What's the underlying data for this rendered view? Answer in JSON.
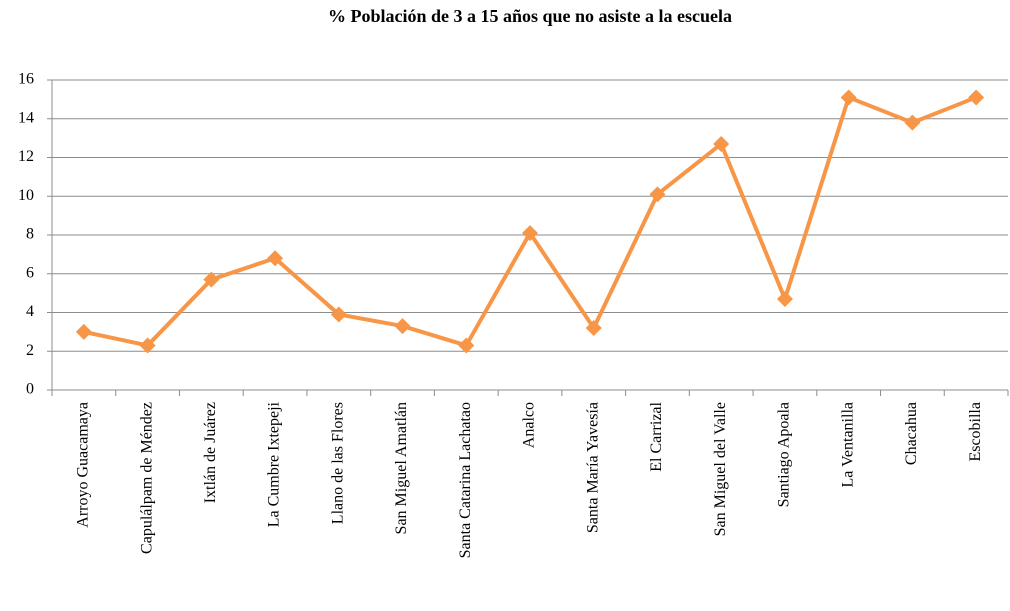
{
  "chart_data": {
    "type": "line",
    "title": "% Población de 3 a 15 años que no asiste a la escuela",
    "categories": [
      "Arroyo Guacamaya",
      "Capulálpam de Méndez",
      "Ixtlán de Juárez",
      "La Cumbre Ixtepeji",
      "Llano de las Flores",
      "San Miguel Amatlán",
      "Santa Catarina Lachatao",
      "Analco",
      "Santa María Yavesía",
      "El Carrizal",
      "San Miguel del Valle",
      "Santiago Apoala",
      "La Ventanilla",
      "Chacahua",
      "Escobilla"
    ],
    "values": [
      3.0,
      2.3,
      5.7,
      6.8,
      3.9,
      3.3,
      2.3,
      8.1,
      3.2,
      10.1,
      12.7,
      4.7,
      15.1,
      13.8,
      15.1
    ],
    "color": "#f79646",
    "ylim": [
      0,
      16
    ],
    "yticks": [
      0,
      2,
      4,
      6,
      8,
      10,
      12,
      14,
      16
    ],
    "grid": true
  }
}
